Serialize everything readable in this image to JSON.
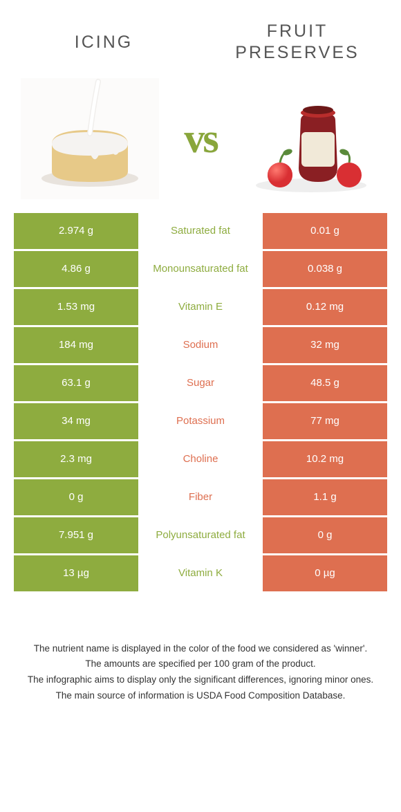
{
  "colors": {
    "left": "#8eac3f",
    "right": "#de6f50",
    "left_text": "#8eac3f",
    "right_text": "#de6f50"
  },
  "header": {
    "left_title": "Icing",
    "right_title": "Fruit preserves",
    "vs": "vs"
  },
  "rows": [
    {
      "left": "2.974 g",
      "label": "Saturated fat",
      "right": "0.01 g",
      "winner": "left"
    },
    {
      "left": "4.86 g",
      "label": "Monounsaturated fat",
      "right": "0.038 g",
      "winner": "left"
    },
    {
      "left": "1.53 mg",
      "label": "Vitamin E",
      "right": "0.12 mg",
      "winner": "left"
    },
    {
      "left": "184 mg",
      "label": "Sodium",
      "right": "32 mg",
      "winner": "right"
    },
    {
      "left": "63.1 g",
      "label": "Sugar",
      "right": "48.5 g",
      "winner": "right"
    },
    {
      "left": "34 mg",
      "label": "Potassium",
      "right": "77 mg",
      "winner": "right"
    },
    {
      "left": "2.3 mg",
      "label": "Choline",
      "right": "10.2 mg",
      "winner": "right"
    },
    {
      "left": "0 g",
      "label": "Fiber",
      "right": "1.1 g",
      "winner": "right"
    },
    {
      "left": "7.951 g",
      "label": "Polyunsaturated fat",
      "right": "0 g",
      "winner": "left"
    },
    {
      "left": "13 µg",
      "label": "Vitamin K",
      "right": "0 µg",
      "winner": "left"
    }
  ],
  "footnotes": [
    "The nutrient name is displayed in the color of the food we considered as 'winner'.",
    "The amounts are specified per 100 gram of the product.",
    "The infographic aims to display only the significant differences, ignoring minor ones.",
    "The main source of information is USDA Food Composition Database."
  ]
}
